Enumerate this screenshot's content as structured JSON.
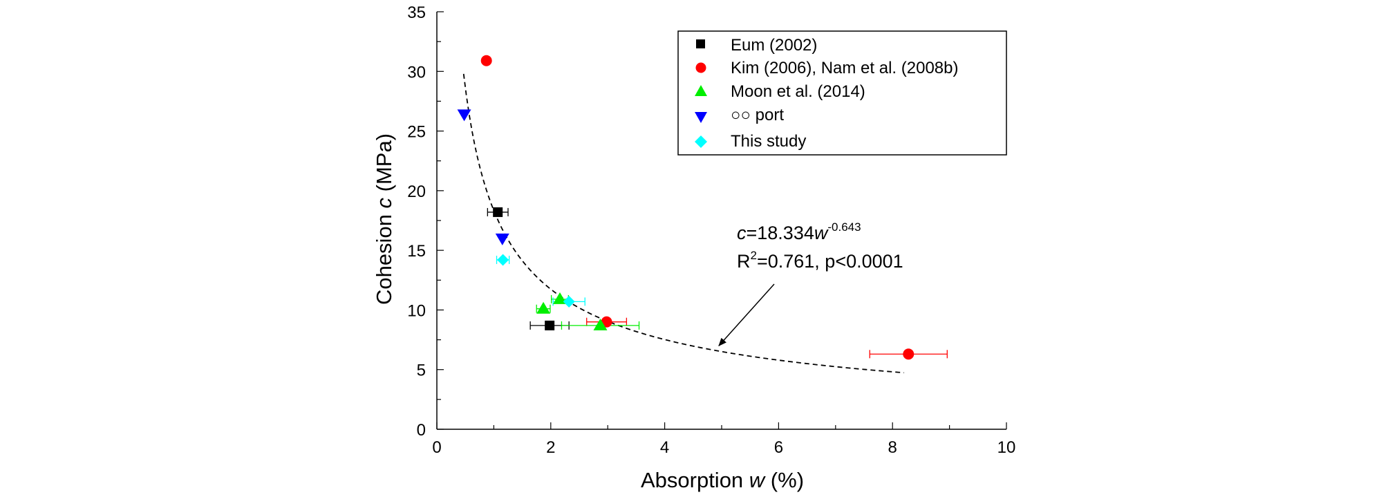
{
  "chart_data": {
    "type": "scatter",
    "title": "",
    "xlabel": {
      "main": "Absorption ",
      "var": "w",
      "unit": " (%)"
    },
    "ylabel": {
      "main": "Cohesion ",
      "var": "c",
      "unit": " (MPa)"
    },
    "xlim": [
      0,
      10
    ],
    "ylim": [
      0,
      35
    ],
    "x_ticks": [
      0,
      2,
      4,
      6,
      8,
      10
    ],
    "x_tick_labels": [
      "0",
      "2",
      "4",
      "6",
      "8",
      "10"
    ],
    "y_ticks": [
      0,
      5,
      10,
      15,
      20,
      25,
      30,
      35
    ],
    "y_tick_labels": [
      "0",
      "5",
      "10",
      "15",
      "20",
      "25",
      "30",
      "35"
    ],
    "grid": false,
    "legend_position": "top-right",
    "series": [
      {
        "name": "Eum (2002)",
        "marker": "square",
        "color": "#000000",
        "points": [
          {
            "x": 1.07,
            "y": 18.2,
            "xerr": 0.18
          },
          {
            "x": 1.98,
            "y": 8.7,
            "xerr": 0.34
          }
        ]
      },
      {
        "name": "Kim (2006), Nam et al. (2008b)",
        "marker": "circle",
        "color": "#ff0000",
        "points": [
          {
            "x": 0.87,
            "y": 30.9
          },
          {
            "x": 2.98,
            "y": 9.0,
            "xerr": 0.35
          },
          {
            "x": 8.28,
            "y": 6.3,
            "xerr": 0.68
          }
        ]
      },
      {
        "name": "Moon et al. (2014)",
        "marker": "triangle-up",
        "color": "#00ee00",
        "points": [
          {
            "x": 1.87,
            "y": 10.1,
            "xerr": 0.12
          },
          {
            "x": 2.16,
            "y": 10.9,
            "xerr": 0.15
          },
          {
            "x": 2.87,
            "y": 8.7,
            "xerr": 0.68
          }
        ]
      },
      {
        "name": "○○ port",
        "marker": "triangle-down",
        "color": "#0000ff",
        "points": [
          {
            "x": 0.48,
            "y": 26.4
          },
          {
            "x": 1.15,
            "y": 16.0
          }
        ]
      },
      {
        "name": "This study",
        "marker": "diamond",
        "color": "#00ffff",
        "points": [
          {
            "x": 1.16,
            "y": 14.2,
            "xerr": 0.11
          },
          {
            "x": 2.32,
            "y": 10.7,
            "xerr": 0.28
          }
        ]
      }
    ],
    "fit": {
      "coef": 18.334,
      "exponent": -0.643,
      "x_range": [
        0.47,
        8.2
      ],
      "style": "dashed",
      "color": "#000000"
    },
    "annotation": {
      "var": "c",
      "coef_text": "=18.334",
      "base_var": "w",
      "exponent_text": "-0.643",
      "r2_prefix": "R",
      "r2_sup": "2",
      "r2_text": "=0.761, p<0.0001",
      "arrow_target": {
        "x": 4.95,
        "y": 7.0
      }
    }
  }
}
